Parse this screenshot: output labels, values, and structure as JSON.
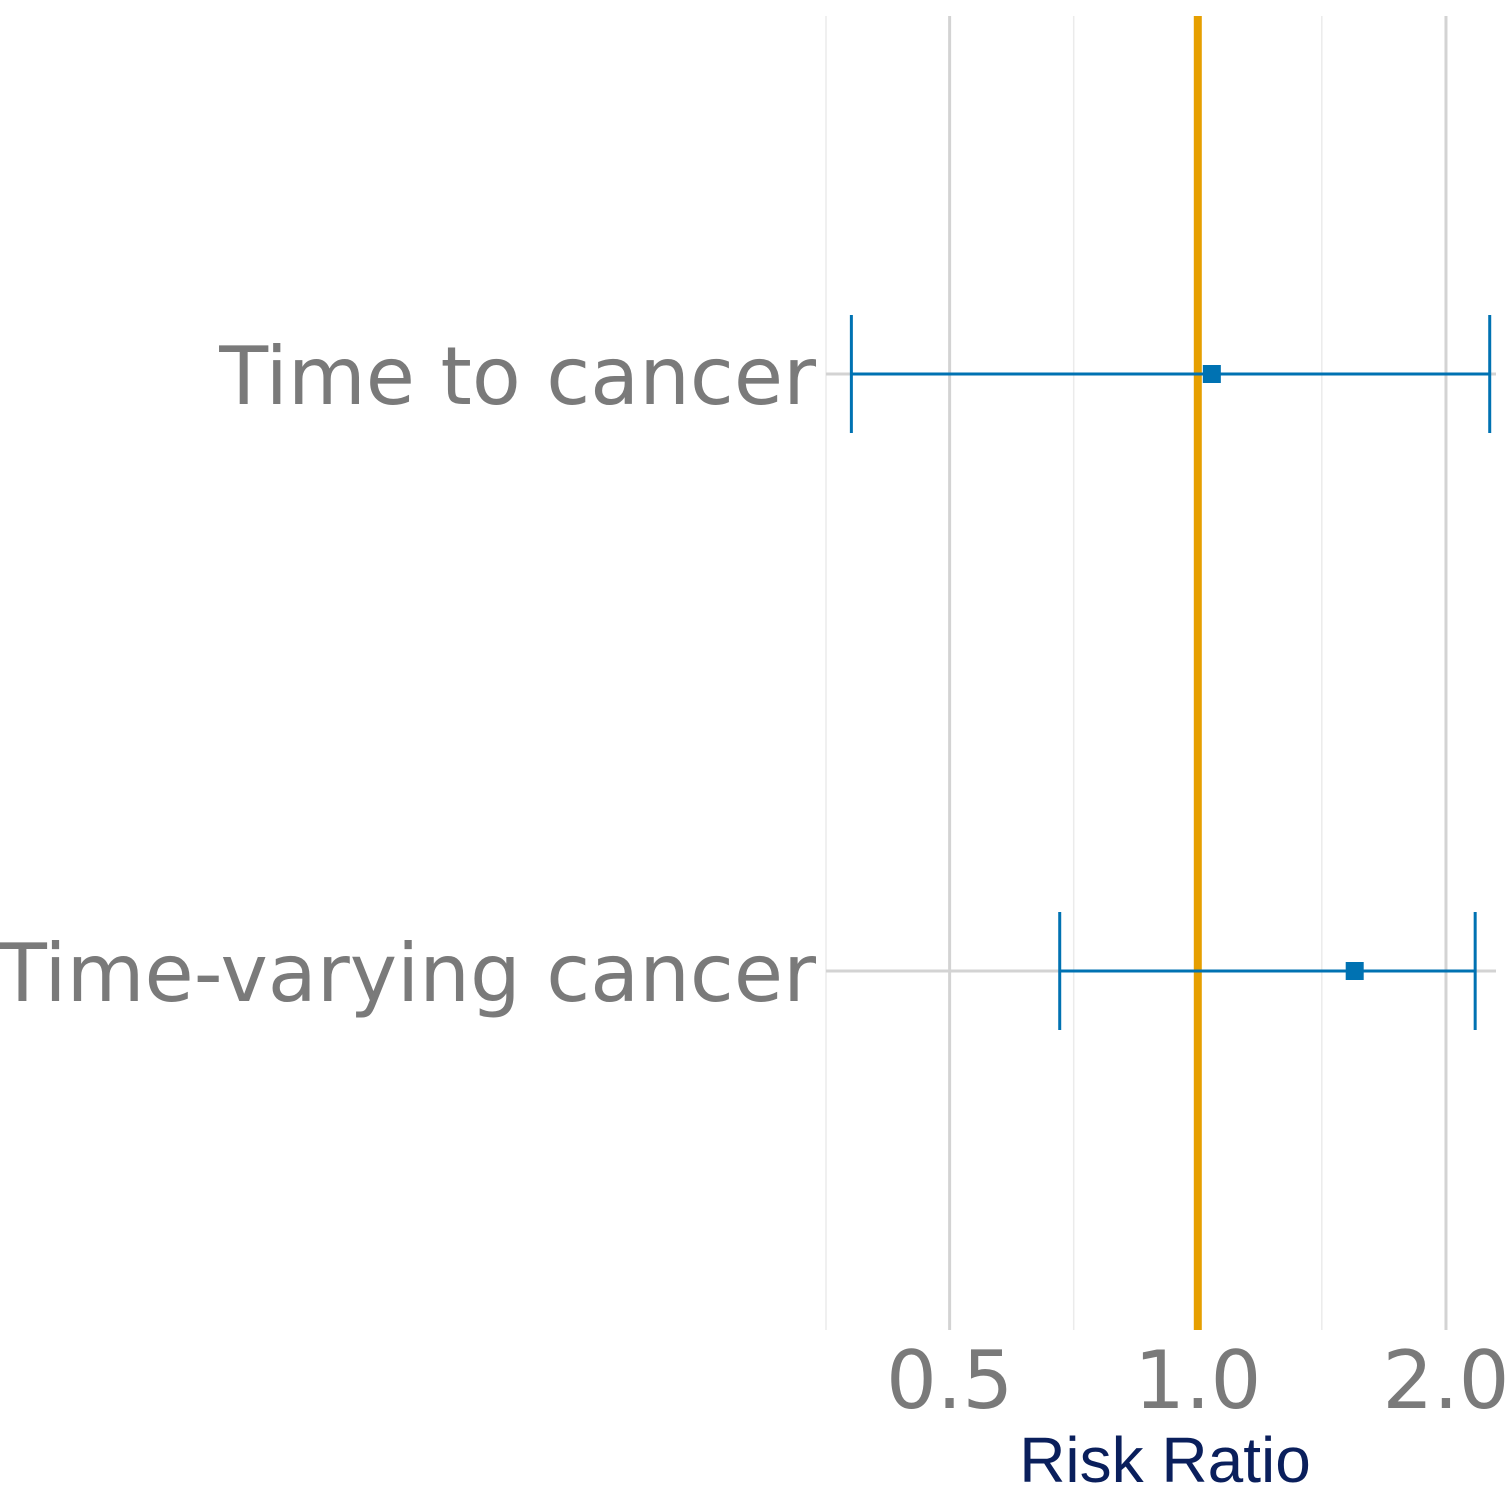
{
  "chart_data": {
    "type": "forest",
    "title": "",
    "xlabel": "Risk Ratio",
    "x_scale": "log2",
    "xlim": [
      0.354,
      2.3
    ],
    "x_ticks": [
      {
        "value": 0.5,
        "label": "0.5"
      },
      {
        "value": 1.0,
        "label": "1.0"
      },
      {
        "value": 2.0,
        "label": "2.0"
      }
    ],
    "x_minor_ticks": [
      0.354,
      0.707,
      1.414
    ],
    "reference_line": 1.0,
    "categories": [
      "Time to cancer",
      "Time-varying cancer"
    ],
    "series": [
      {
        "points": [
          {
            "label": "Time to cancer",
            "estimate": 1.04,
            "lower": 0.38,
            "upper": 2.26
          },
          {
            "label": "Time-varying cancer",
            "estimate": 1.55,
            "lower": 0.68,
            "upper": 2.17
          }
        ]
      }
    ],
    "grid": true,
    "legend": "none",
    "colors": {
      "point": "#0072b2",
      "reference": "#e69f00",
      "grid_major": "#d3d3d3",
      "grid_minor": "#ebebeb",
      "text": "#7a7a7a",
      "axis_title": "#0a1f5c"
    }
  }
}
